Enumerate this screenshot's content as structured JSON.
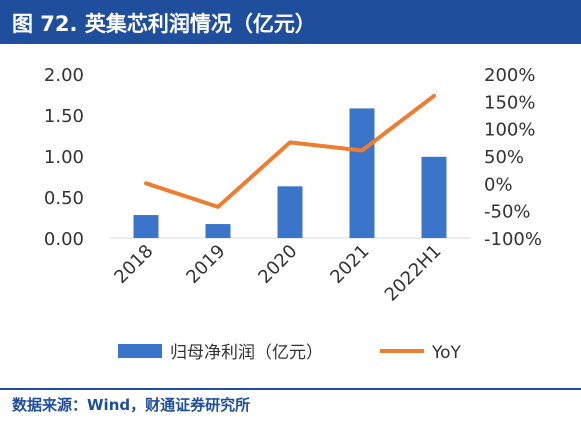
{
  "title": "图 72. 英集芯利润情况（亿元）",
  "source": "数据来源：Wind，财通证券研究所",
  "colors": {
    "bar": "#3b75c9",
    "line": "#ed7d31",
    "title_bg": "#1f4e9c"
  },
  "chart_data": {
    "type": "bar",
    "categories": [
      "2018",
      "2019",
      "2020",
      "2021",
      "2022H1"
    ],
    "series": [
      {
        "name": "归母净利润（亿元）",
        "type": "bar",
        "axis": "left",
        "values": [
          0.28,
          0.17,
          0.63,
          1.58,
          0.99
        ]
      },
      {
        "name": "YoY",
        "type": "line",
        "axis": "right",
        "values": [
          0,
          -43,
          75,
          60,
          160
        ]
      }
    ],
    "left_axis": {
      "min": 0,
      "max": 2,
      "ticks": [
        "0.00",
        "0.50",
        "1.00",
        "1.50",
        "2.00"
      ],
      "tick_values": [
        0,
        0.5,
        1,
        1.5,
        2
      ]
    },
    "right_axis": {
      "min": -100,
      "max": 200,
      "ticks": [
        "-100%",
        "-50%",
        "0%",
        "50%",
        "100%",
        "150%",
        "200%"
      ],
      "tick_values": [
        -100,
        -50,
        0,
        50,
        100,
        150,
        200
      ]
    },
    "grid": false,
    "legend_position": "bottom"
  }
}
